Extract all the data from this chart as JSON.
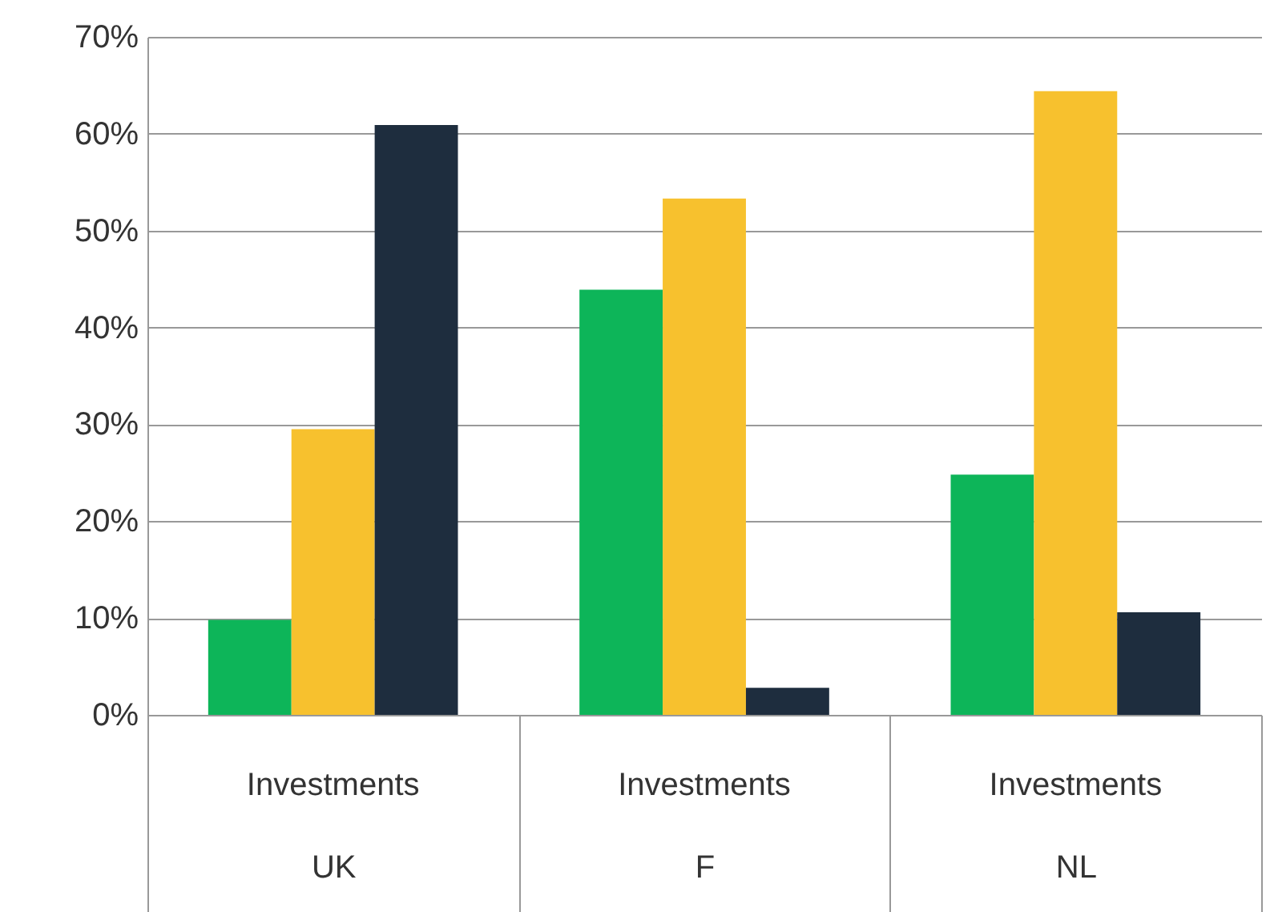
{
  "chart_data": {
    "type": "bar",
    "categories": [
      "UK",
      "F",
      "NL"
    ],
    "series": [
      {
        "color": "#0db559",
        "values": [
          9.8,
          43.9,
          24.8
        ]
      },
      {
        "color": "#f7c12e",
        "values": [
          29.5,
          53.3,
          64.4
        ]
      },
      {
        "color": "#1e2d3e",
        "values": [
          60.9,
          2.8,
          10.6
        ]
      }
    ],
    "ylim": [
      0,
      70
    ],
    "yticks": [
      {
        "value": 0,
        "label": "0%"
      },
      {
        "value": 10,
        "label": "10%"
      },
      {
        "value": 20,
        "label": "20%"
      },
      {
        "value": 30,
        "label": "30%"
      },
      {
        "value": 40,
        "label": "40%"
      },
      {
        "value": 50,
        "label": "50%"
      },
      {
        "value": 60,
        "label": "60%"
      },
      {
        "value": 70,
        "label": "70%"
      }
    ],
    "grid": "y",
    "annotations": [
      "Investments",
      "Investments",
      "Investments"
    ]
  }
}
